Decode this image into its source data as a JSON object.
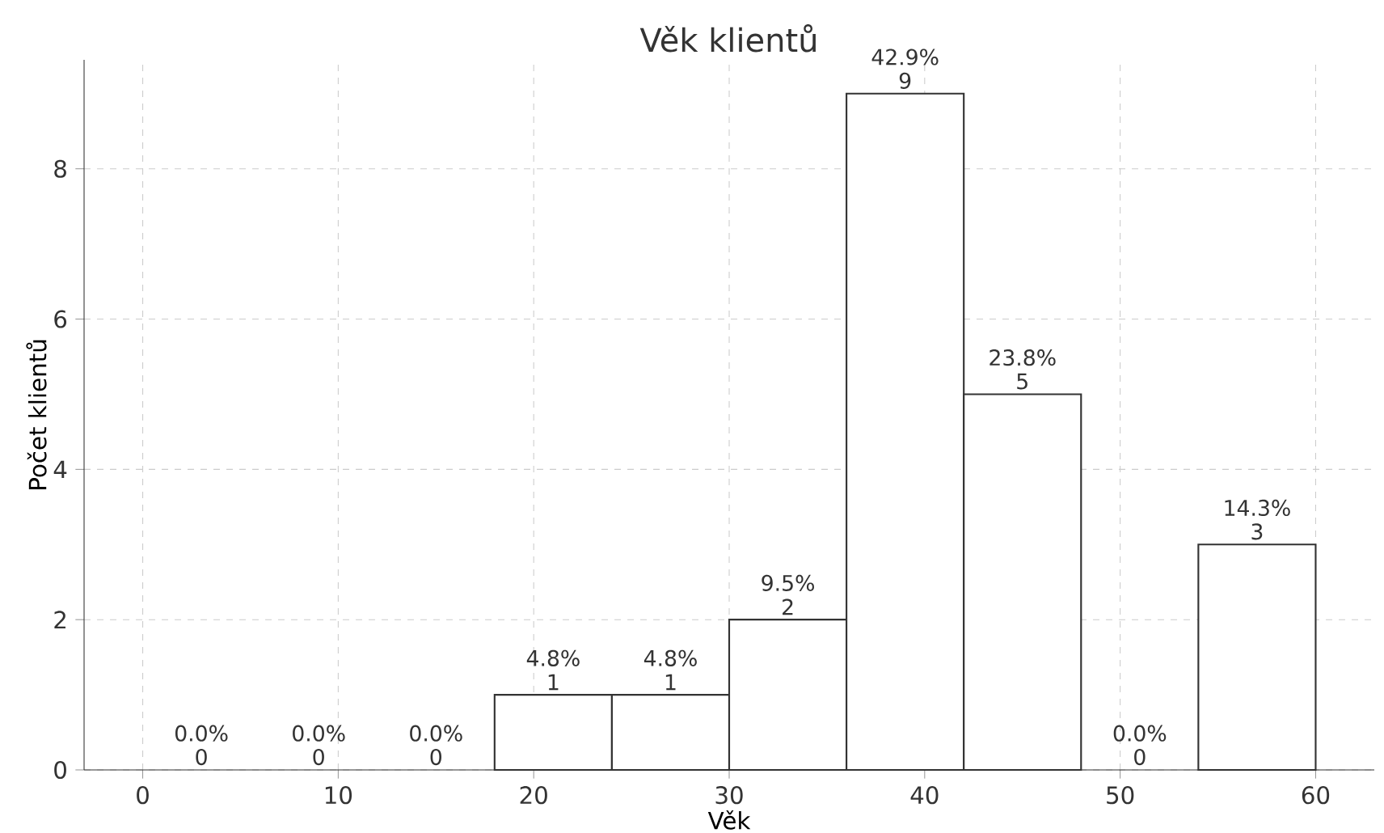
{
  "chart_data": {
    "type": "histogram",
    "title": "Věk klientů",
    "xlabel": "Věk",
    "ylabel": "Počet klientů",
    "bins": [
      0,
      6,
      12,
      18,
      24,
      30,
      36,
      42,
      48,
      54,
      60
    ],
    "values": [
      0,
      0,
      0,
      1,
      1,
      2,
      9,
      5,
      0,
      3
    ],
    "value_labels": [
      "0",
      "0",
      "0",
      "1",
      "1",
      "2",
      "9",
      "5",
      "0",
      "3"
    ],
    "annotations": [
      {
        "text": "0.0%",
        "x": 3,
        "y": 0
      },
      {
        "text": "0.0%",
        "x": 9,
        "y": 0
      },
      {
        "text": "0.0%",
        "x": 15,
        "y": 0
      },
      {
        "text": "4.8%",
        "x": 21,
        "y": 1
      },
      {
        "text": "4.8%",
        "x": 27,
        "y": 1
      },
      {
        "text": "9.5%",
        "x": 33,
        "y": 2
      },
      {
        "text": "42.9%",
        "x": 39,
        "y": 9
      },
      {
        "text": "23.8%",
        "x": 45,
        "y": 5
      },
      {
        "text": "0.0%",
        "x": 51,
        "y": 0
      },
      {
        "text": "14.3%",
        "x": 57,
        "y": 3
      }
    ],
    "color": "#ffffff",
    "xlim": [
      -3,
      63
    ],
    "ylim": [
      0,
      9.45
    ],
    "xticks": [
      0,
      10,
      20,
      30,
      40,
      50,
      60
    ],
    "yticks": [
      0,
      2,
      4,
      6,
      8
    ],
    "grid": true
  }
}
